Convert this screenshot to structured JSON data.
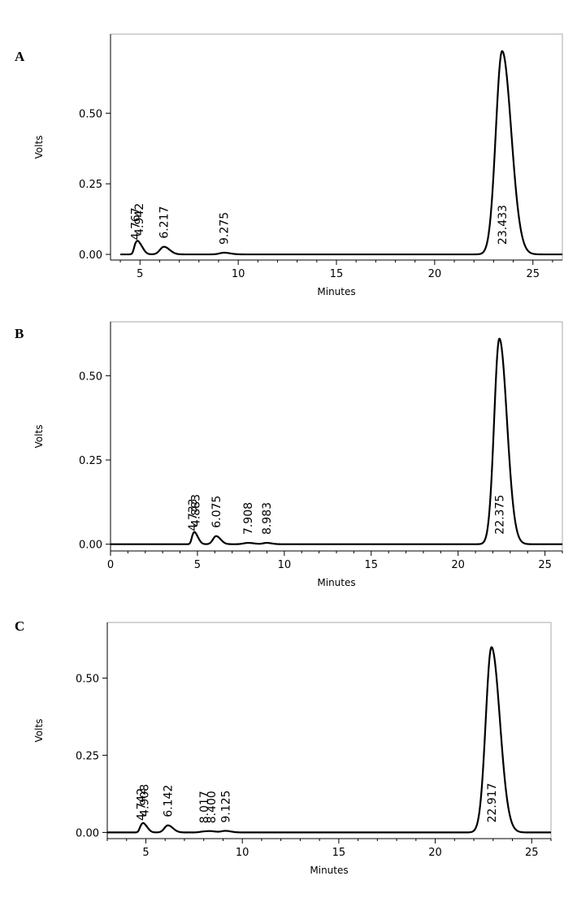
{
  "chart_data": [
    {
      "type": "line",
      "panel_label": "A",
      "xlabel": "Minutes",
      "ylabel": "Volts",
      "xlim": [
        3.5,
        26.5
      ],
      "ylim": [
        -0.02,
        0.78
      ],
      "x_ticks": [
        5,
        10,
        15,
        20,
        25
      ],
      "x_tick_labels": [
        "5",
        "10",
        "15",
        "20",
        "25"
      ],
      "y_ticks": [
        0.0,
        0.25,
        0.5
      ],
      "y_tick_labels": [
        "0.00",
        "0.25",
        "0.50"
      ],
      "grid": false,
      "baseline_start": 4.0,
      "peaks": [
        {
          "rt": 4.767,
          "label": "4.767",
          "height": 0.022,
          "width": 0.08
        },
        {
          "rt": 4.942,
          "label": "4.942",
          "height": 0.038,
          "width": 0.14
        },
        {
          "rt": 6.217,
          "label": "6.217",
          "height": 0.027,
          "width": 0.2
        },
        {
          "rt": 9.275,
          "label": "9.275",
          "height": 0.006,
          "width": 0.22
        },
        {
          "rt": 23.433,
          "label": "23.433",
          "height": 0.72,
          "width": 0.32
        }
      ]
    },
    {
      "type": "line",
      "panel_label": "B",
      "xlabel": "Minutes",
      "ylabel": "Volts",
      "xlim": [
        0,
        26
      ],
      "ylim": [
        -0.02,
        0.66
      ],
      "x_ticks": [
        0,
        5,
        10,
        15,
        20,
        25
      ],
      "x_tick_labels": [
        "0",
        "5",
        "10",
        "15",
        "20",
        "25"
      ],
      "y_ticks": [
        0.0,
        0.25,
        0.5
      ],
      "y_tick_labels": [
        "0.00",
        "0.25",
        "0.50"
      ],
      "grid": false,
      "baseline_start": 0.0,
      "peaks": [
        {
          "rt": 4.733,
          "label": "4.733",
          "height": 0.015,
          "width": 0.08
        },
        {
          "rt": 4.883,
          "label": "4.883",
          "height": 0.028,
          "width": 0.13
        },
        {
          "rt": 6.075,
          "label": "6.075",
          "height": 0.024,
          "width": 0.18
        },
        {
          "rt": 7.908,
          "label": "7.908",
          "height": 0.004,
          "width": 0.25
        },
        {
          "rt": 8.983,
          "label": "8.983",
          "height": 0.004,
          "width": 0.2
        },
        {
          "rt": 22.375,
          "label": "22.375",
          "height": 0.61,
          "width": 0.3
        }
      ]
    },
    {
      "type": "line",
      "panel_label": "C",
      "xlabel": "Minutes",
      "ylabel": "Volts",
      "xlim": [
        3,
        26
      ],
      "ylim": [
        -0.02,
        0.68
      ],
      "x_ticks": [
        5,
        10,
        15,
        20,
        25
      ],
      "x_tick_labels": [
        "5",
        "10",
        "15",
        "20",
        "25"
      ],
      "y_ticks": [
        0.0,
        0.25,
        0.5
      ],
      "y_tick_labels": [
        "0.00",
        "0.25",
        "0.50"
      ],
      "grid": false,
      "baseline_start": 3.0,
      "peaks": [
        {
          "rt": 4.742,
          "label": "4.742",
          "height": 0.012,
          "width": 0.08
        },
        {
          "rt": 4.908,
          "label": "4.908",
          "height": 0.025,
          "width": 0.13
        },
        {
          "rt": 6.142,
          "label": "6.142",
          "height": 0.023,
          "width": 0.18
        },
        {
          "rt": 8.017,
          "label": "8.017",
          "height": 0.003,
          "width": 0.2
        },
        {
          "rt": 8.4,
          "label": "8.400",
          "height": 0.003,
          "width": 0.2
        },
        {
          "rt": 9.125,
          "label": "9.125",
          "height": 0.005,
          "width": 0.2
        },
        {
          "rt": 22.917,
          "label": "22.917",
          "height": 0.6,
          "width": 0.3
        }
      ]
    }
  ]
}
